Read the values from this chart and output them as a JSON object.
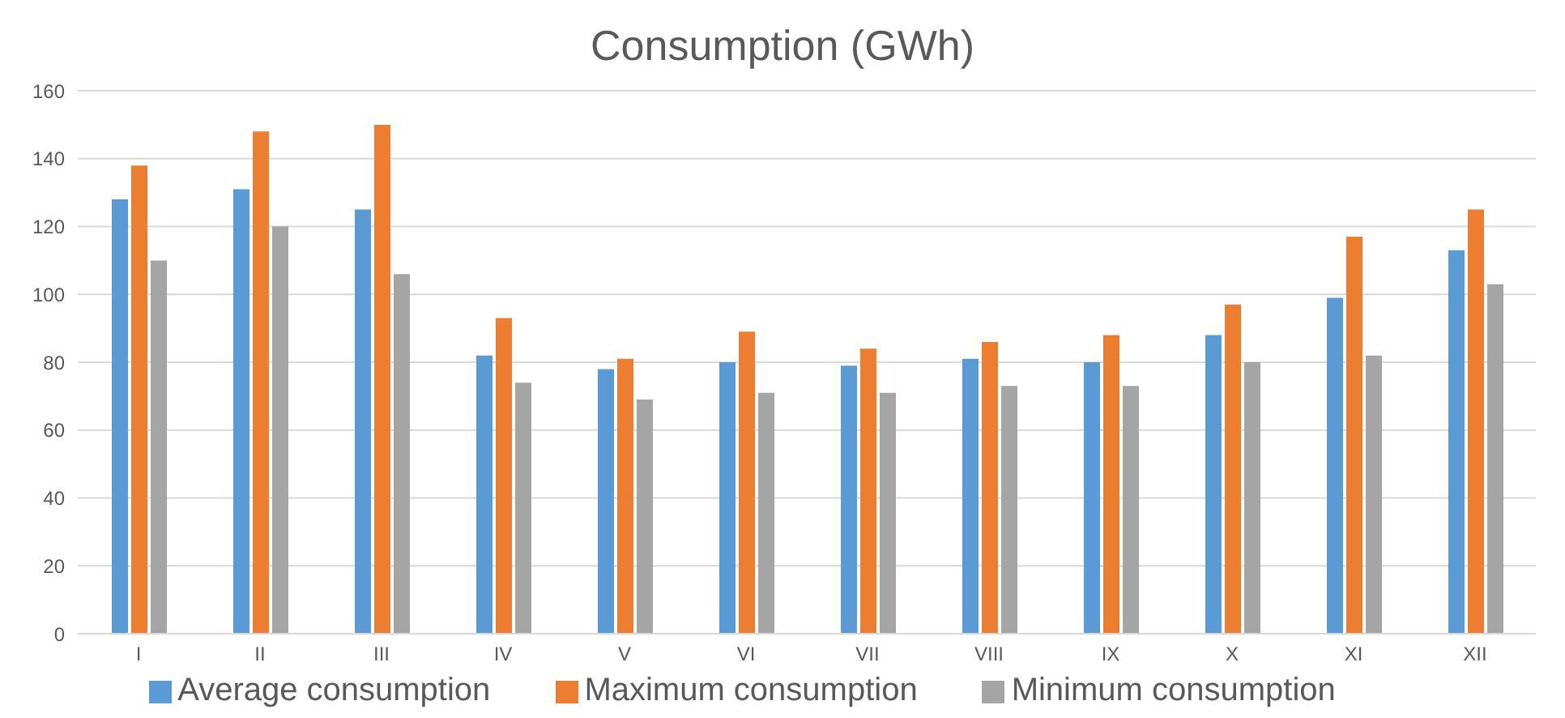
{
  "chart_data": {
    "type": "bar",
    "title": "Consumption (GWh)",
    "categories": [
      "I",
      "II",
      "III",
      "IV",
      "V",
      "VI",
      "VII",
      "VIII",
      "IX",
      "X",
      "XI",
      "XII"
    ],
    "series": [
      {
        "name": "Average consumption",
        "color": "#5b9bd5",
        "values": [
          128,
          131,
          125,
          82,
          78,
          80,
          79,
          81,
          80,
          88,
          99,
          113
        ]
      },
      {
        "name": "Maximum consumption",
        "color": "#ed7d31",
        "values": [
          138,
          148,
          150,
          93,
          81,
          89,
          84,
          86,
          88,
          97,
          117,
          125
        ]
      },
      {
        "name": "Minimum consumption",
        "color": "#a5a5a5",
        "values": [
          110,
          120,
          106,
          74,
          69,
          71,
          71,
          73,
          73,
          80,
          82,
          103
        ]
      }
    ],
    "ylim": [
      0,
      160
    ],
    "yticks": [
      0,
      20,
      40,
      60,
      80,
      100,
      120,
      140,
      160
    ],
    "grid": "y",
    "legend": "bottom"
  }
}
